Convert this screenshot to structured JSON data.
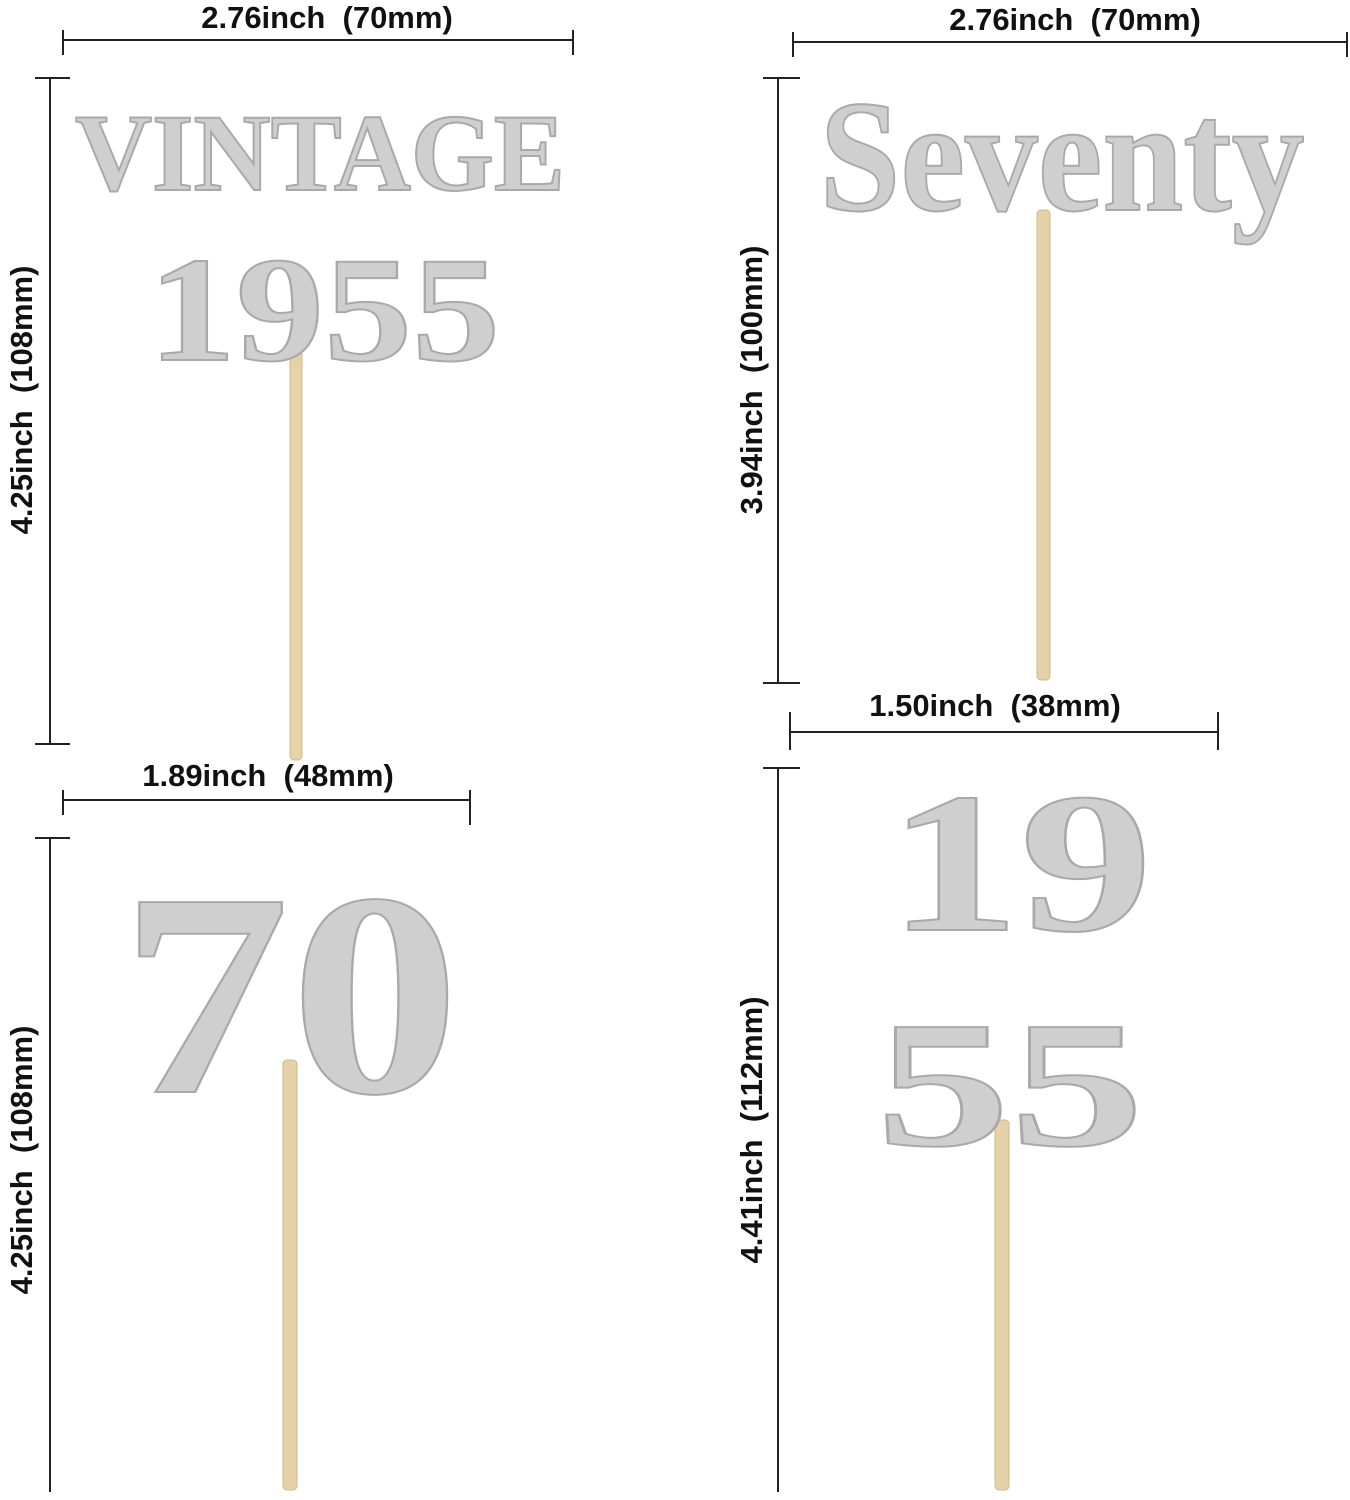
{
  "colors": {
    "glitter": "#cfcfcf",
    "stick": "#e6d2a8",
    "text": "#111111"
  },
  "toppers": [
    {
      "lines": [
        "VINTAGE",
        "1955"
      ],
      "width_label": "2.76inch  (70mm)",
      "height_label": "4.25inch  (108mm)"
    },
    {
      "lines": [
        "Seventy"
      ],
      "width_label": "2.76inch  (70mm)",
      "height_label": "3.94inch  (100mm)"
    },
    {
      "lines": [
        "70"
      ],
      "width_label": "1.89inch  (48mm)",
      "height_label": "4.25inch  (108mm)"
    },
    {
      "lines": [
        "19",
        "55"
      ],
      "width_label": "1.50inch  (38mm)",
      "height_label": "4.41inch  (112mm)"
    }
  ]
}
